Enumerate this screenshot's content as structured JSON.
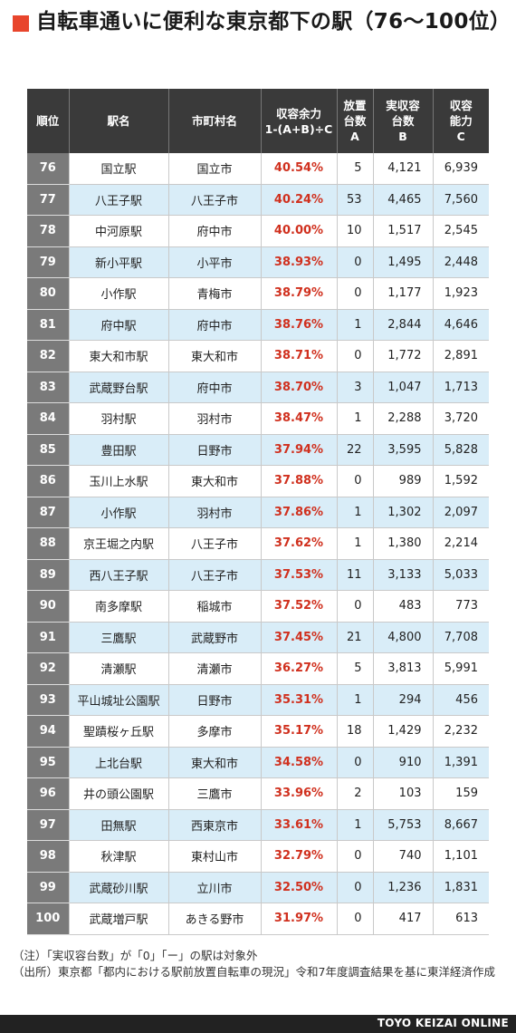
{
  "title": "自転車通いに便利な東京都下の駅（76〜100位）",
  "headers": {
    "rank": "順位",
    "station": "駅名",
    "city": "市町村名",
    "rate_line1": "収容余力",
    "rate_line2": "1-(A+B)÷C",
    "abandoned_line1": "放置",
    "abandoned_line2": "台数",
    "abandoned_line3": "A",
    "actual_line1": "実収容",
    "actual_line2": "台数",
    "actual_line3": "B",
    "capacity_line1": "収容",
    "capacity_line2": "能力",
    "capacity_line3": "C"
  },
  "rows": [
    {
      "rank": "76",
      "station": "国立駅",
      "city": "国立市",
      "rate": "40.54%",
      "a": "5",
      "b": "4,121",
      "c": "6,939"
    },
    {
      "rank": "77",
      "station": "八王子駅",
      "city": "八王子市",
      "rate": "40.24%",
      "a": "53",
      "b": "4,465",
      "c": "7,560"
    },
    {
      "rank": "78",
      "station": "中河原駅",
      "city": "府中市",
      "rate": "40.00%",
      "a": "10",
      "b": "1,517",
      "c": "2,545"
    },
    {
      "rank": "79",
      "station": "新小平駅",
      "city": "小平市",
      "rate": "38.93%",
      "a": "0",
      "b": "1,495",
      "c": "2,448"
    },
    {
      "rank": "80",
      "station": "小作駅",
      "city": "青梅市",
      "rate": "38.79%",
      "a": "0",
      "b": "1,177",
      "c": "1,923"
    },
    {
      "rank": "81",
      "station": "府中駅",
      "city": "府中市",
      "rate": "38.76%",
      "a": "1",
      "b": "2,844",
      "c": "4,646"
    },
    {
      "rank": "82",
      "station": "東大和市駅",
      "city": "東大和市",
      "rate": "38.71%",
      "a": "0",
      "b": "1,772",
      "c": "2,891"
    },
    {
      "rank": "83",
      "station": "武蔵野台駅",
      "city": "府中市",
      "rate": "38.70%",
      "a": "3",
      "b": "1,047",
      "c": "1,713"
    },
    {
      "rank": "84",
      "station": "羽村駅",
      "city": "羽村市",
      "rate": "38.47%",
      "a": "1",
      "b": "2,288",
      "c": "3,720"
    },
    {
      "rank": "85",
      "station": "豊田駅",
      "city": "日野市",
      "rate": "37.94%",
      "a": "22",
      "b": "3,595",
      "c": "5,828"
    },
    {
      "rank": "86",
      "station": "玉川上水駅",
      "city": "東大和市",
      "rate": "37.88%",
      "a": "0",
      "b": "989",
      "c": "1,592"
    },
    {
      "rank": "87",
      "station": "小作駅",
      "city": "羽村市",
      "rate": "37.86%",
      "a": "1",
      "b": "1,302",
      "c": "2,097"
    },
    {
      "rank": "88",
      "station": "京王堀之内駅",
      "city": "八王子市",
      "rate": "37.62%",
      "a": "1",
      "b": "1,380",
      "c": "2,214"
    },
    {
      "rank": "89",
      "station": "西八王子駅",
      "city": "八王子市",
      "rate": "37.53%",
      "a": "11",
      "b": "3,133",
      "c": "5,033"
    },
    {
      "rank": "90",
      "station": "南多摩駅",
      "city": "稲城市",
      "rate": "37.52%",
      "a": "0",
      "b": "483",
      "c": "773"
    },
    {
      "rank": "91",
      "station": "三鷹駅",
      "city": "武蔵野市",
      "rate": "37.45%",
      "a": "21",
      "b": "4,800",
      "c": "7,708"
    },
    {
      "rank": "92",
      "station": "清瀬駅",
      "city": "清瀬市",
      "rate": "36.27%",
      "a": "5",
      "b": "3,813",
      "c": "5,991"
    },
    {
      "rank": "93",
      "station": "平山城址公園駅",
      "city": "日野市",
      "rate": "35.31%",
      "a": "1",
      "b": "294",
      "c": "456"
    },
    {
      "rank": "94",
      "station": "聖蹟桜ヶ丘駅",
      "city": "多摩市",
      "rate": "35.17%",
      "a": "18",
      "b": "1,429",
      "c": "2,232"
    },
    {
      "rank": "95",
      "station": "上北台駅",
      "city": "東大和市",
      "rate": "34.58%",
      "a": "0",
      "b": "910",
      "c": "1,391"
    },
    {
      "rank": "96",
      "station": "井の頭公園駅",
      "city": "三鷹市",
      "rate": "33.96%",
      "a": "2",
      "b": "103",
      "c": "159"
    },
    {
      "rank": "97",
      "station": "田無駅",
      "city": "西東京市",
      "rate": "33.61%",
      "a": "1",
      "b": "5,753",
      "c": "8,667"
    },
    {
      "rank": "98",
      "station": "秋津駅",
      "city": "東村山市",
      "rate": "32.79%",
      "a": "0",
      "b": "740",
      "c": "1,101"
    },
    {
      "rank": "99",
      "station": "武蔵砂川駅",
      "city": "立川市",
      "rate": "32.50%",
      "a": "0",
      "b": "1,236",
      "c": "1,831"
    },
    {
      "rank": "100",
      "station": "武蔵増戸駅",
      "city": "あきる野市",
      "rate": "31.97%",
      "a": "0",
      "b": "417",
      "c": "613"
    }
  ],
  "notes": {
    "note": "（注）「実収容台数」が「0」「ー」の駅は対象外",
    "source": "（出所）東京都「都内における駅前放置自転車の現況」令和7年度調査結果を基に東洋経済作成"
  },
  "footer": "TOYO KEIZAI ONLINE",
  "colors": {
    "accent": "#e8452c",
    "header_bg": "#3a3a3a",
    "rank_bg": "#7a7a7a",
    "stripe": "#d9edf8",
    "rate_text": "#d0301e"
  }
}
